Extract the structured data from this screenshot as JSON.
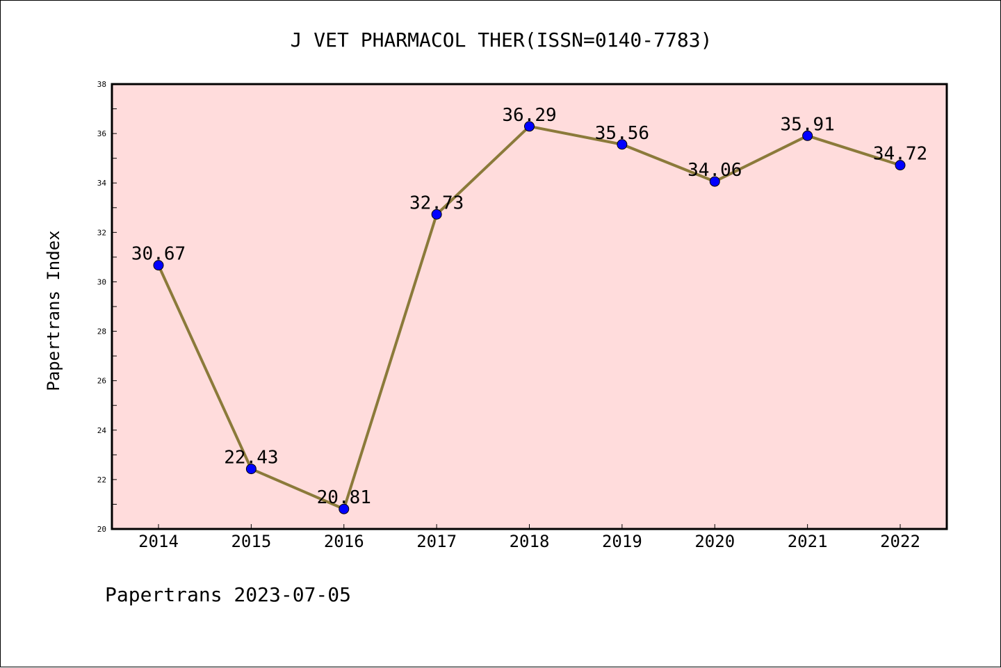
{
  "chart_data": {
    "type": "line",
    "title": "J VET PHARMACOL THER(ISSN=0140-7783)",
    "xlabel": "",
    "ylabel": "Papertrans Index",
    "categories": [
      "2014",
      "2015",
      "2016",
      "2017",
      "2018",
      "2019",
      "2020",
      "2021",
      "2022"
    ],
    "series": [
      {
        "values": [
          30.67,
          22.43,
          20.81,
          32.73,
          36.29,
          35.56,
          34.06,
          35.91,
          34.72
        ],
        "labels": [
          "30.67",
          "22.43",
          "20.81",
          "32.73",
          "36.29",
          "35.56",
          "34.06",
          "35.91",
          "34.72"
        ]
      }
    ],
    "ylim": [
      20,
      38
    ],
    "yticks": [
      "20",
      "22",
      "24",
      "26",
      "28",
      "30",
      "32",
      "34",
      "36",
      "38"
    ],
    "grid": false,
    "legend": "none"
  },
  "footer": "Papertrans 2023-07-05",
  "colors": {
    "plot_background": "#ffdcdc",
    "line": "#8b7a3a",
    "marker": "#0000ff",
    "axis": "#000000"
  }
}
